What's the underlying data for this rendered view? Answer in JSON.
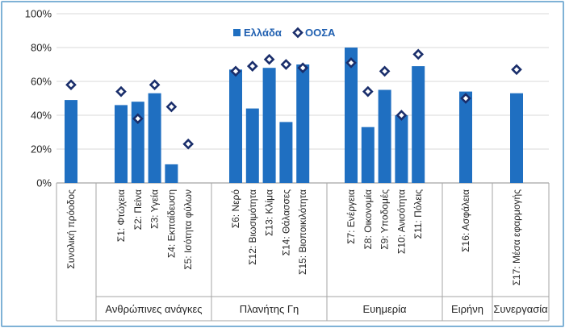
{
  "chart_data": {
    "type": "bar",
    "title": "",
    "xlabel": "",
    "ylabel": "",
    "ylim": [
      0,
      100
    ],
    "y_ticks": [
      "0%",
      "20%",
      "40%",
      "60%",
      "80%",
      "100%"
    ],
    "categories": [
      "Συνολική πρόοδος",
      "Σ1: Φτώχεια",
      "Σ2: Πείνα",
      "Σ3: Υγεία",
      "Σ4: Εκπαίδευση",
      "Σ5: Ισότητα φύλων",
      "Σ6: Νερό",
      "Σ12: Βιωσιμότητα",
      "Σ13: Κλίμα",
      "Σ14: Θάλασσες",
      "Σ15: Βιοποικιλότητα",
      "Σ7: Ενέργεια",
      "Σ8: Οικονομία",
      "Σ9: Υποδομές",
      "Σ10: Ανισότητα",
      "Σ11: Πόλεις",
      "Σ16: Ασφάλεια",
      "Σ17: Μέσα εφαρμογής"
    ],
    "groups": [
      {
        "label": "",
        "count": 1
      },
      {
        "label": "Ανθρώπινες ανάγκες",
        "count": 5
      },
      {
        "label": "Πλανήτης Γη",
        "count": 5
      },
      {
        "label": "Ευημερία",
        "count": 5
      },
      {
        "label": "Ειρήνη",
        "count": 1
      },
      {
        "label": "Συνεργασία",
        "count": 1
      }
    ],
    "series": [
      {
        "name": "Ελλάδα",
        "kind": "bar",
        "color": "#1f6fc1",
        "values": [
          49,
          46,
          48,
          53,
          11,
          null,
          67,
          44,
          68,
          36,
          70,
          80,
          33,
          55,
          40,
          69,
          54,
          53
        ]
      },
      {
        "name": "ΟΟΣΑ",
        "kind": "marker-diamond",
        "color": "#1a2e6b",
        "values": [
          58,
          54,
          38,
          58,
          45,
          23,
          66,
          69,
          73,
          70,
          68,
          71,
          54,
          66,
          40,
          76,
          50,
          67
        ]
      }
    ],
    "legend_position": "top-right"
  }
}
